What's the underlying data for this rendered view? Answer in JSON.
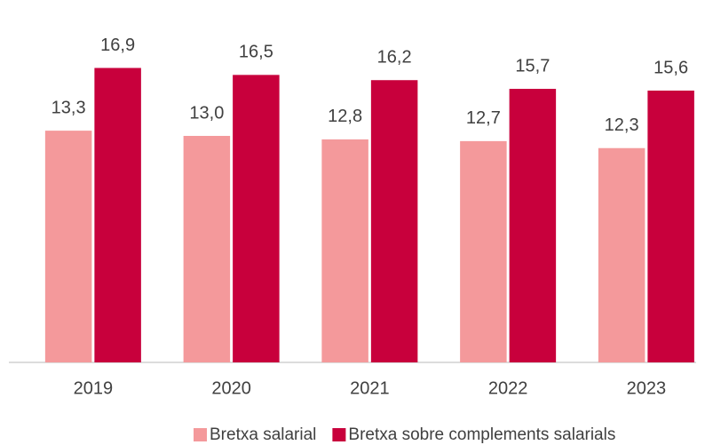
{
  "chart_data": {
    "type": "bar",
    "categories": [
      "2019",
      "2020",
      "2021",
      "2022",
      "2023"
    ],
    "series": [
      {
        "name": "Bretxa salarial",
        "color": "#f4999b",
        "values": [
          13.3,
          13.0,
          12.8,
          12.7,
          12.3
        ],
        "value_labels": [
          "13,3",
          "13,0",
          "12,8",
          "12,7",
          "12,3"
        ]
      },
      {
        "name": "Bretxa sobre complements salarials",
        "color": "#c8003c",
        "values": [
          16.9,
          16.5,
          16.2,
          15.7,
          15.6
        ],
        "value_labels": [
          "16,9",
          "16,5",
          "16,2",
          "15,7",
          "15,6"
        ]
      }
    ],
    "ylim": [
      0,
      20.8
    ]
  }
}
